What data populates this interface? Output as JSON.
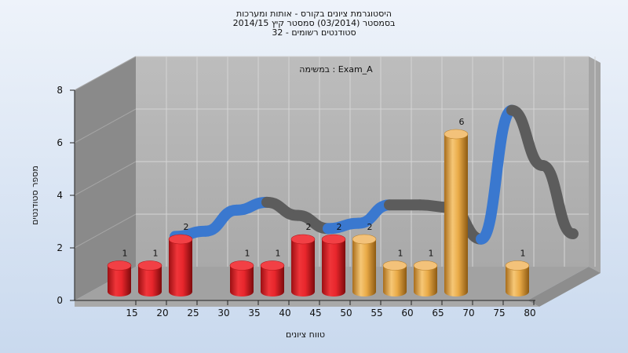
{
  "chart_data": {
    "type": "bar",
    "title_lines": [
      "היסטוגרמת ציונים בקורס - אותות ומערכות",
      "בסמסטר  (03/2014)  סמסטר קיץ 2014/15",
      "סטודנטים רשומים - 32"
    ],
    "subtitle": "Exam_A : במשימה",
    "xlabel": "טווח ציונים",
    "ylabel": "מספר סטודנטים",
    "x_ticks": [
      "15",
      "20",
      "25",
      "30",
      "35",
      "40",
      "45",
      "50",
      "55",
      "60",
      "65",
      "70",
      "75",
      "80"
    ],
    "y_ticks": [
      "0",
      "2",
      "4",
      "6",
      "8"
    ],
    "ylim": [
      0,
      8
    ],
    "bars": [
      {
        "x": 15,
        "value": 1,
        "label": "1",
        "color": "red"
      },
      {
        "x": 20,
        "value": 1,
        "label": "1",
        "color": "red"
      },
      {
        "x": 25,
        "value": 2,
        "label": "2",
        "color": "red"
      },
      {
        "x": 35,
        "value": 1,
        "label": "1",
        "color": "red"
      },
      {
        "x": 40,
        "value": 1,
        "label": "1",
        "color": "red"
      },
      {
        "x": 45,
        "value": 2,
        "label": "2",
        "color": "red"
      },
      {
        "x": 50,
        "value": 2,
        "label": "2",
        "color": "red"
      },
      {
        "x": 55,
        "value": 2,
        "label": "2",
        "color": "gold"
      },
      {
        "x": 60,
        "value": 1,
        "label": "1",
        "color": "gold"
      },
      {
        "x": 65,
        "value": 1,
        "label": "1",
        "color": "gold"
      },
      {
        "x": 70,
        "value": 6,
        "label": "6",
        "color": "gold"
      },
      {
        "x": 80,
        "value": 1,
        "label": "1",
        "color": "gold"
      }
    ],
    "curve": [
      {
        "x": 20,
        "y": 1.6
      },
      {
        "x": 25,
        "y": 1.8
      },
      {
        "x": 30,
        "y": 2.6
      },
      {
        "x": 35,
        "y": 2.9
      },
      {
        "x": 40,
        "y": 2.4
      },
      {
        "x": 45,
        "y": 1.9
      },
      {
        "x": 50,
        "y": 2.1
      },
      {
        "x": 55,
        "y": 2.8
      },
      {
        "x": 60,
        "y": 2.8
      },
      {
        "x": 65,
        "y": 2.7
      },
      {
        "x": 70,
        "y": 1.5
      },
      {
        "x": 75,
        "y": 6.4
      },
      {
        "x": 80,
        "y": 4.3
      },
      {
        "x": 85,
        "y": 1.7
      }
    ],
    "colors": {
      "red": "#e8262c",
      "red_dark": "#8c0d10",
      "gold": "#e9aa47",
      "gold_dark": "#9a6414",
      "curve_up": "#3a78cf",
      "curve_down": "#5c5c5c"
    },
    "grid": true
  }
}
